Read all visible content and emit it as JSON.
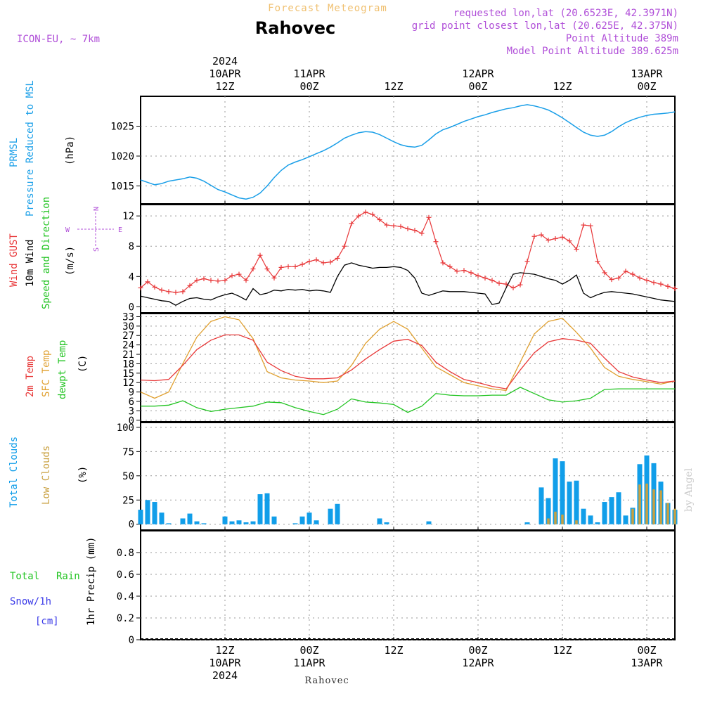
{
  "header": {
    "title": "Forecast Meteogram",
    "location": "Rahovec",
    "model": "ICON-EU, ~ 7km",
    "requested": "requested lon,lat (20.6523E, 42.3971N)",
    "grid_point": "grid point closest lon,lat (20.625E, 42.375N)",
    "point_altitude": "Point Altitude 389m",
    "model_altitude": "Model Point Altitude 389.625m"
  },
  "footer": {
    "location": "Rahovec",
    "credit": "by Angel"
  },
  "time_axis": {
    "top_labels": [
      {
        "x": 12,
        "lines": [
          "2024",
          "10APR",
          "12Z"
        ]
      },
      {
        "x": 24,
        "lines": [
          "11APR",
          "00Z"
        ]
      },
      {
        "x": 36,
        "lines": [
          "12Z"
        ]
      },
      {
        "x": 48,
        "lines": [
          "12APR",
          "00Z"
        ]
      },
      {
        "x": 60,
        "lines": [
          "12Z"
        ]
      },
      {
        "x": 72,
        "lines": [
          "13APR",
          "00Z"
        ]
      }
    ],
    "bottom_labels": [
      {
        "x": 12,
        "lines": [
          "12Z",
          "10APR",
          "2024"
        ]
      },
      {
        "x": 24,
        "lines": [
          "00Z",
          "11APR"
        ]
      },
      {
        "x": 36,
        "lines": [
          "12Z"
        ]
      },
      {
        "x": 48,
        "lines": [
          "00Z",
          "12APR"
        ]
      },
      {
        "x": 60,
        "lines": [
          "12Z"
        ]
      },
      {
        "x": 72,
        "lines": [
          "00Z",
          "13APR"
        ]
      }
    ]
  },
  "panel_labels": {
    "pressure": {
      "left1": "PRMSL",
      "left2": "Pressure Reduced to MSL",
      "unit": "(hPa)"
    },
    "wind": {
      "gust": "Wind GUST",
      "wind10": "10m Wind",
      "dir": "Speed and Direction",
      "unit": "(m/s)",
      "compass": [
        "N",
        "E",
        "S",
        "W"
      ]
    },
    "temp": {
      "t2m": "2m Temp",
      "sfc": "SFC Temp",
      "dewpt": "dewpt Temp",
      "unit": "(C)"
    },
    "cloud": {
      "total": "Total Clouds",
      "low": "Low Clouds",
      "unit": "(%)"
    },
    "precip": {
      "total": "Total",
      "rain": "Rain",
      "snow": "Snow/1h",
      "snow_unit": "[cm]",
      "unit": "1hr Precip (mm)"
    }
  },
  "colors": {
    "pressure": "#1a9fe8",
    "gust": "#e8383a",
    "wind10": "#000000",
    "t2m": "#e83a3a",
    "sfc": "#e0a030",
    "dewpt": "#22c422",
    "total_cloud": "#119ee9",
    "low_cloud": "#c9a040",
    "title": "#f0c070",
    "header_purple": "#b04fd8",
    "rain": "#22c422",
    "snow": "#3a3ae8",
    "grid": "#999999"
  },
  "chart_data": [
    {
      "type": "line",
      "name": "PRMSL",
      "ylabel": "(hPa)",
      "ylim": [
        1012,
        1030
      ],
      "yticks": [
        1015,
        1020,
        1025
      ],
      "x": [
        0,
        1,
        2,
        3,
        4,
        5,
        6,
        7,
        8,
        9,
        10,
        11,
        12,
        13,
        14,
        15,
        16,
        17,
        18,
        19,
        20,
        21,
        22,
        23,
        24,
        25,
        26,
        27,
        28,
        29,
        30,
        31,
        32,
        33,
        34,
        35,
        36,
        37,
        38,
        39,
        40,
        41,
        42,
        43,
        44,
        45,
        46,
        47,
        48,
        49,
        50,
        51,
        52,
        53,
        54,
        55,
        56,
        57,
        58,
        59,
        60,
        61,
        62,
        63,
        64,
        65,
        66,
        67,
        68,
        69,
        70,
        71,
        72,
        73,
        74,
        75,
        76
      ],
      "values": [
        1016.0,
        1015.6,
        1015.2,
        1015.4,
        1015.8,
        1016.0,
        1016.2,
        1016.5,
        1016.3,
        1015.8,
        1015.1,
        1014.4,
        1014.0,
        1013.5,
        1013.0,
        1012.8,
        1013.1,
        1013.8,
        1015.0,
        1016.4,
        1017.6,
        1018.5,
        1019.0,
        1019.4,
        1019.9,
        1020.4,
        1020.9,
        1021.5,
        1022.2,
        1023.0,
        1023.5,
        1023.9,
        1024.1,
        1024.0,
        1023.6,
        1023.0,
        1022.4,
        1021.9,
        1021.6,
        1021.5,
        1021.8,
        1022.7,
        1023.7,
        1024.4,
        1024.8,
        1025.3,
        1025.8,
        1026.2,
        1026.6,
        1026.9,
        1027.3,
        1027.6,
        1027.9,
        1028.1,
        1028.4,
        1028.6,
        1028.4,
        1028.1,
        1027.7,
        1027.1,
        1026.4,
        1025.6,
        1024.8,
        1024.0,
        1023.5,
        1023.3,
        1023.5,
        1024.1,
        1024.9,
        1025.6,
        1026.1,
        1026.5,
        1026.8,
        1027.0,
        1027.1,
        1027.2,
        1027.4
      ]
    },
    {
      "type": "line",
      "name": "Wind",
      "ylabel": "(m/s)",
      "ylim": [
        -0.8,
        13.5
      ],
      "yticks": [
        0,
        4,
        8,
        12
      ],
      "x_gust": [
        0,
        1,
        2,
        3,
        4,
        5,
        6,
        7,
        8,
        9,
        10,
        11,
        12,
        13,
        14,
        15,
        16,
        17,
        18,
        19,
        20,
        21,
        22,
        23,
        24,
        25,
        26,
        27,
        28,
        29,
        30,
        31,
        32,
        33,
        34,
        35,
        36,
        37,
        38,
        39,
        40,
        41,
        42,
        43,
        44,
        45,
        46,
        47,
        48,
        49,
        50,
        51,
        52,
        53,
        54,
        55,
        56,
        57,
        58,
        59,
        60,
        61,
        62,
        63,
        64,
        65,
        66,
        67,
        68,
        69,
        70,
        71,
        72,
        73,
        74,
        75,
        76
      ],
      "gust": [
        2.5,
        3.3,
        2.6,
        2.2,
        2.0,
        1.9,
        2.0,
        2.8,
        3.5,
        3.7,
        3.5,
        3.4,
        3.5,
        4.1,
        4.3,
        3.5,
        5.0,
        6.8,
        5.0,
        3.8,
        5.2,
        5.3,
        5.3,
        5.6,
        6.0,
        6.2,
        5.8,
        5.9,
        6.4,
        8.0,
        11.0,
        12.0,
        12.5,
        12.2,
        11.5,
        10.8,
        10.7,
        10.6,
        10.3,
        10.1,
        9.7,
        11.8,
        8.6,
        5.8,
        5.3,
        4.7,
        4.8,
        4.5,
        4.1,
        3.8,
        3.5,
        3.1,
        3.0,
        2.5,
        2.9,
        6.0,
        9.3,
        9.5,
        8.8,
        9.0,
        9.2,
        8.7,
        7.6,
        10.8,
        10.7,
        6.0,
        4.5,
        3.6,
        3.8,
        4.7,
        4.3,
        3.8,
        3.5,
        3.2,
        3.0,
        2.7,
        2.4
      ],
      "x_wind": [
        0,
        1,
        2,
        3,
        4,
        5,
        6,
        7,
        8,
        9,
        10,
        11,
        12,
        13,
        14,
        15,
        16,
        17,
        18,
        19,
        20,
        21,
        22,
        23,
        24,
        25,
        26,
        27,
        28,
        29,
        30,
        31,
        32,
        33,
        34,
        35,
        36,
        37,
        38,
        39,
        40,
        41,
        42,
        43,
        44,
        45,
        46,
        47,
        48,
        49,
        50,
        51,
        52,
        53,
        54,
        55,
        56,
        57,
        58,
        59,
        60,
        61,
        62,
        63,
        64,
        65,
        66,
        67,
        68,
        69,
        70,
        71,
        72,
        73,
        74,
        75,
        76
      ],
      "wind10": [
        1.4,
        1.2,
        1.0,
        0.8,
        0.7,
        0.2,
        0.7,
        1.1,
        1.2,
        1.0,
        0.9,
        1.3,
        1.6,
        1.8,
        1.4,
        0.9,
        2.4,
        1.6,
        1.8,
        2.2,
        2.1,
        2.3,
        2.2,
        2.3,
        2.1,
        2.2,
        2.1,
        1.9,
        4.0,
        5.5,
        5.8,
        5.5,
        5.3,
        5.1,
        5.2,
        5.2,
        5.3,
        5.2,
        4.8,
        3.8,
        1.8,
        1.5,
        1.8,
        2.1,
        2.0,
        2.0,
        2.0,
        1.9,
        1.8,
        1.7,
        0.3,
        0.5,
        2.5,
        4.3,
        4.5,
        4.4,
        4.3,
        4.0,
        3.7,
        3.5,
        3.0,
        3.5,
        4.2,
        1.8,
        1.2,
        1.6,
        1.9,
        2.0,
        1.9,
        1.8,
        1.7,
        1.5,
        1.3,
        1.1,
        0.9,
        0.8,
        0.7
      ]
    },
    {
      "type": "line",
      "name": "Temperature",
      "ylabel": "(C)",
      "ylim": [
        -0.5,
        34
      ],
      "yticks": [
        0,
        3,
        6,
        9,
        12,
        15,
        18,
        21,
        24,
        27,
        30,
        33
      ],
      "x": [
        0,
        2,
        4,
        6,
        8,
        10,
        12,
        14,
        16,
        18,
        20,
        22,
        24,
        26,
        28,
        30,
        32,
        34,
        36,
        38,
        40,
        42,
        44,
        46,
        48,
        50,
        52,
        54,
        56,
        58,
        60,
        62,
        64,
        66,
        68,
        70,
        72,
        74,
        76
      ],
      "t2m": [
        12.8,
        12.6,
        13.0,
        17.5,
        22.5,
        25.5,
        27.2,
        27.2,
        25.5,
        18.5,
        15.8,
        14.0,
        13.2,
        13.2,
        13.5,
        16.0,
        19.5,
        22.5,
        25.2,
        25.8,
        23.8,
        18.5,
        15.5,
        13.0,
        12.0,
        10.8,
        10.0,
        16.0,
        21.5,
        25.0,
        26.0,
        25.5,
        24.5,
        19.8,
        15.5,
        13.8,
        12.8,
        12.0,
        12.5
      ],
      "sfc": [
        9.0,
        7.0,
        9.0,
        18.0,
        26.5,
        31.5,
        33.0,
        32.0,
        26.0,
        15.5,
        13.5,
        12.8,
        12.5,
        12.0,
        12.5,
        17.5,
        24.5,
        29.0,
        31.5,
        29.0,
        23.0,
        17.0,
        14.5,
        12.0,
        11.0,
        10.0,
        9.5,
        18.5,
        27.5,
        31.5,
        32.5,
        28.0,
        23.0,
        16.8,
        14.0,
        13.0,
        12.3,
        11.5,
        12.5
      ],
      "dewpt": [
        4.5,
        4.5,
        4.8,
        6.2,
        4.0,
        2.8,
        3.5,
        4.0,
        4.5,
        5.8,
        5.6,
        4.0,
        2.8,
        1.8,
        3.5,
        6.8,
        5.8,
        5.5,
        5.0,
        2.5,
        4.5,
        8.5,
        8.0,
        7.8,
        7.8,
        8.0,
        8.0,
        10.5,
        8.5,
        6.5,
        5.8,
        6.2,
        7.0,
        9.8,
        10.0,
        10.0,
        10.0,
        10.0,
        10.0
      ]
    },
    {
      "type": "bar",
      "name": "Clouds",
      "ylabel": "(%)",
      "ylim": [
        -6,
        105
      ],
      "yticks": [
        0,
        25,
        50,
        75,
        100
      ],
      "total": [
        {
          "x": 0,
          "v": 15
        },
        {
          "x": 1,
          "v": 25
        },
        {
          "x": 2,
          "v": 23
        },
        {
          "x": 3,
          "v": 12
        },
        {
          "x": 4,
          "v": 1
        },
        {
          "x": 6,
          "v": 6
        },
        {
          "x": 7,
          "v": 11
        },
        {
          "x": 8,
          "v": 3
        },
        {
          "x": 9,
          "v": 1
        },
        {
          "x": 12,
          "v": 8
        },
        {
          "x": 13,
          "v": 3
        },
        {
          "x": 14,
          "v": 4
        },
        {
          "x": 15,
          "v": 2
        },
        {
          "x": 16,
          "v": 3
        },
        {
          "x": 17,
          "v": 31
        },
        {
          "x": 18,
          "v": 32
        },
        {
          "x": 19,
          "v": 8
        },
        {
          "x": 22,
          "v": 1
        },
        {
          "x": 23,
          "v": 8
        },
        {
          "x": 24,
          "v": 12
        },
        {
          "x": 25,
          "v": 4
        },
        {
          "x": 27,
          "v": 16
        },
        {
          "x": 28,
          "v": 21
        },
        {
          "x": 34,
          "v": 6
        },
        {
          "x": 35,
          "v": 2
        },
        {
          "x": 41,
          "v": 3
        },
        {
          "x": 55,
          "v": 2
        },
        {
          "x": 57,
          "v": 38
        },
        {
          "x": 58,
          "v": 27
        },
        {
          "x": 59,
          "v": 68
        },
        {
          "x": 60,
          "v": 65
        },
        {
          "x": 61,
          "v": 44
        },
        {
          "x": 62,
          "v": 45
        },
        {
          "x": 63,
          "v": 16
        },
        {
          "x": 64,
          "v": 9
        },
        {
          "x": 65,
          "v": 2
        },
        {
          "x": 66,
          "v": 23
        },
        {
          "x": 67,
          "v": 28
        },
        {
          "x": 68,
          "v": 33
        },
        {
          "x": 69,
          "v": 9
        },
        {
          "x": 70,
          "v": 17
        },
        {
          "x": 71,
          "v": 62
        },
        {
          "x": 72,
          "v": 71
        },
        {
          "x": 73,
          "v": 63
        },
        {
          "x": 74,
          "v": 44
        },
        {
          "x": 75,
          "v": 22
        },
        {
          "x": 76,
          "v": 15
        }
      ],
      "low": [
        {
          "x": 58,
          "v": 6
        },
        {
          "x": 59,
          "v": 13
        },
        {
          "x": 60,
          "v": 10
        },
        {
          "x": 62,
          "v": 4
        },
        {
          "x": 70,
          "v": 16
        },
        {
          "x": 71,
          "v": 41
        },
        {
          "x": 72,
          "v": 42
        },
        {
          "x": 73,
          "v": 36
        },
        {
          "x": 74,
          "v": 35
        },
        {
          "x": 75,
          "v": 22
        },
        {
          "x": 76,
          "v": 16
        }
      ]
    },
    {
      "type": "bar",
      "name": "Precipitation",
      "ylabel": "1hr Precip (mm)",
      "ylim": [
        0,
        1.0
      ],
      "yticks": [
        0,
        0.2,
        0.4,
        0.6,
        0.8
      ],
      "ytick_labels": [
        "0",
        "0.2",
        "0.4",
        "0.6",
        "0.8"
      ],
      "rain": [],
      "snow": []
    }
  ]
}
